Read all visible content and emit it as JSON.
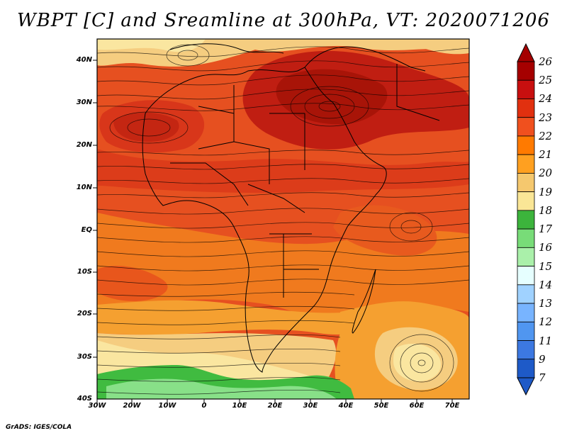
{
  "title": "WBPT [C] and Sreamline at 300hPa, VT: 2020071206",
  "credit": "GrADS: IGES/COLA",
  "map": {
    "y_labels": [
      "40N",
      "30N",
      "20N",
      "10N",
      "EQ",
      "10S",
      "20S",
      "30S",
      "40S"
    ],
    "x_labels": [
      "30W",
      "20W",
      "10W",
      "0",
      "10E",
      "20E",
      "30E",
      "40E",
      "50E",
      "60E",
      "70E"
    ]
  },
  "colorbar": {
    "labels": [
      "26",
      "25",
      "24",
      "23",
      "22",
      "21",
      "20",
      "19",
      "18",
      "17",
      "16",
      "15",
      "14",
      "13",
      "12",
      "11",
      "9",
      "7"
    ],
    "colors": [
      "#a50000",
      "#c80f0f",
      "#e1300f",
      "#f0501e",
      "#ff7a00",
      "#ffa020",
      "#f5c86e",
      "#fae696",
      "#3cb43c",
      "#78dc78",
      "#aaf0aa",
      "#e6ffff",
      "#a0d2ff",
      "#78b4ff",
      "#5096f0",
      "#3c78e1",
      "#1e5ac8"
    ]
  },
  "colors": {
    "dark_red": "#b81a10",
    "red": "#d8361a",
    "red_orange": "#e65020",
    "orange": "#f07a1e",
    "light_orange": "#f5a030",
    "tan": "#f5cd80",
    "pale": "#fae6a0",
    "green": "#40bb40",
    "light_green": "#88e088"
  }
}
